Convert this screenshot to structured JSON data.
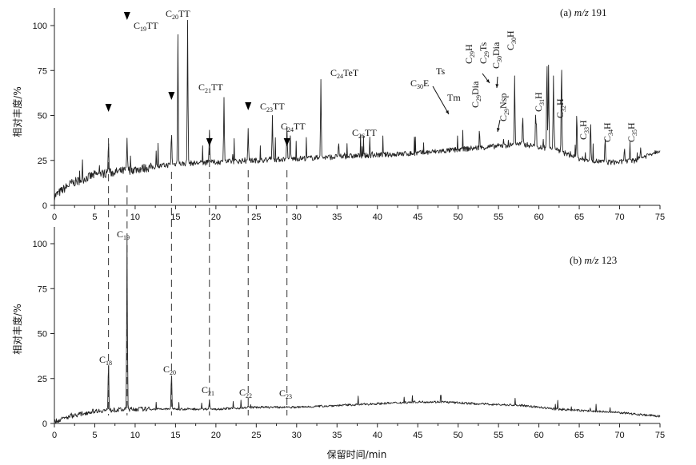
{
  "chart_data": [
    {
      "type": "line",
      "panel": "(a) m/z 191",
      "xlabel": "保留时间/min",
      "ylabel": "相对丰度/%",
      "xlim": [
        0,
        75
      ],
      "ylim": [
        0,
        110
      ],
      "x_ticks": [
        0,
        5,
        10,
        15,
        20,
        25,
        30,
        35,
        40,
        45,
        50,
        55,
        60,
        65,
        70,
        75
      ],
      "x_tick_labels": [
        "0",
        "5",
        "10",
        "15",
        "20",
        "25",
        "30",
        "35",
        "40",
        "45",
        "50",
        "55",
        "60",
        "65",
        "70",
        "75"
      ],
      "y_ticks": [
        0,
        25,
        50,
        75,
        100
      ],
      "y_tick_labels": [
        "0",
        "25",
        "50",
        "75",
        "100"
      ],
      "baseline": [
        [
          0,
          5
        ],
        [
          2,
          12
        ],
        [
          5,
          17
        ],
        [
          10,
          20
        ],
        [
          15,
          23
        ],
        [
          20,
          24
        ],
        [
          25,
          25
        ],
        [
          30,
          26
        ],
        [
          35,
          27
        ],
        [
          40,
          28
        ],
        [
          45,
          29
        ],
        [
          50,
          31
        ],
        [
          55,
          33
        ],
        [
          58,
          34
        ],
        [
          62,
          31
        ],
        [
          65,
          26
        ],
        [
          68,
          24
        ],
        [
          70,
          24
        ],
        [
          72,
          25
        ],
        [
          75,
          31
        ]
      ],
      "peaks": [
        {
          "label": "C19TT",
          "x": 15.3,
          "y": 95
        },
        {
          "label": "C20TT",
          "x": 16.5,
          "y": 103
        },
        {
          "label": "C21TT",
          "x": 21.0,
          "y": 60
        },
        {
          "label": "C23TT",
          "x": 27.0,
          "y": 50
        },
        {
          "label": "C24TT",
          "x": 29.2,
          "y": 40
        },
        {
          "label": "C24TeT",
          "x": 33.0,
          "y": 70
        },
        {
          "label": "C26TT",
          "x": 35.2,
          "y": 35
        },
        {
          "label": "C30E",
          "x": 57.0,
          "y": 60
        },
        {
          "label": "Ts",
          "x": 57.0,
          "y": 72
        },
        {
          "label": "Tm",
          "x": 58.0,
          "y": 50
        },
        {
          "label": "C29Dia",
          "x": 59.6,
          "y": 52
        },
        {
          "label": "C29H",
          "x": 61.0,
          "y": 82
        },
        {
          "label": "C29Ts",
          "x": 61.2,
          "y": 78
        },
        {
          "label": "C30Dia",
          "x": 61.8,
          "y": 72
        },
        {
          "label": "C29Nsp",
          "x": 61.9,
          "y": 40
        },
        {
          "label": "C30H",
          "x": 62.8,
          "y": 80
        },
        {
          "label": "C31H",
          "x": 64.7,
          "y": 52
        },
        {
          "label": "C32H",
          "x": 66.4,
          "y": 47
        },
        {
          "label": "C33H",
          "x": 68.2,
          "y": 38
        },
        {
          "label": "C34H",
          "x": 70.6,
          "y": 32
        },
        {
          "label": "C35H",
          "x": 72.6,
          "y": 32
        }
      ],
      "triangle_markers_x": [
        6.7,
        9.0,
        14.5,
        19.2,
        24.0,
        28.8
      ],
      "annotations": [
        "C19TT",
        "C20TT",
        "C21TT",
        "C23TT",
        "C24TT",
        "C24TeT",
        "C26TT",
        "C30E",
        "Ts",
        "Tm",
        "C29Dia",
        "C29H",
        "C29Ts",
        "C30Dia",
        "C29Nsp",
        "C30H",
        "C31H",
        "C32H",
        "C33H",
        "C34H",
        "C35H"
      ]
    },
    {
      "type": "line",
      "panel": "(b) m/z 123",
      "xlabel": "保留时间/min",
      "ylabel": "相对丰度/%",
      "xlim": [
        0,
        75
      ],
      "ylim": [
        0,
        110
      ],
      "x_ticks": [
        0,
        5,
        10,
        15,
        20,
        25,
        30,
        35,
        40,
        45,
        50,
        55,
        60,
        65,
        70,
        75
      ],
      "x_tick_labels": [
        "0",
        "5",
        "10",
        "15",
        "20",
        "25",
        "30",
        "35",
        "40",
        "45",
        "50",
        "55",
        "60",
        "65",
        "70",
        "75"
      ],
      "y_ticks": [
        0,
        25,
        50,
        75,
        100
      ],
      "y_tick_labels": [
        "0",
        "25",
        "50",
        "75",
        "100"
      ],
      "baseline": [
        [
          0,
          1
        ],
        [
          2,
          4
        ],
        [
          5,
          7
        ],
        [
          10,
          8
        ],
        [
          15,
          8
        ],
        [
          20,
          8
        ],
        [
          25,
          9
        ],
        [
          30,
          9
        ],
        [
          35,
          10
        ],
        [
          40,
          11
        ],
        [
          45,
          12
        ],
        [
          48,
          12
        ],
        [
          52,
          11
        ],
        [
          58,
          10
        ],
        [
          62,
          8
        ],
        [
          66,
          7
        ],
        [
          70,
          6
        ],
        [
          75,
          4
        ]
      ],
      "peaks": [
        {
          "label": "C18",
          "x": 6.7,
          "y": 35
        },
        {
          "label": "C19",
          "x": 9.0,
          "y": 103
        },
        {
          "label": "C20",
          "x": 14.5,
          "y": 28
        },
        {
          "label": "C21",
          "x": 19.2,
          "y": 13
        },
        {
          "label": "C22",
          "x": 24.0,
          "y": 10
        },
        {
          "label": "C23",
          "x": 28.8,
          "y": 9
        }
      ],
      "annotations": [
        "C18",
        "C19",
        "C20",
        "C21",
        "C22",
        "C23"
      ]
    }
  ],
  "labels": {
    "panel_a_prefix": "(a) ",
    "panel_a_mz": "m/z",
    "panel_a_value": " 191",
    "panel_b_prefix": "(b) ",
    "panel_b_mz": "m/z",
    "panel_b_value": " 123"
  }
}
